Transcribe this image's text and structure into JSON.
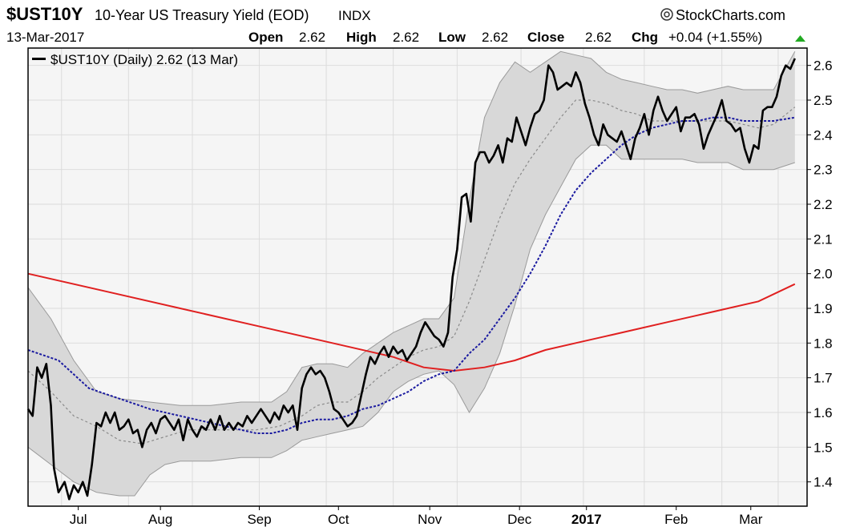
{
  "header": {
    "symbol": "$UST10Y",
    "title": "10-Year US Treasury Yield (EOD)",
    "exchange": "INDX",
    "brand": "StockCharts.com",
    "date": "13-Mar-2017",
    "open_label": "Open",
    "open": "2.62",
    "high_label": "High",
    "high": "2.62",
    "low_label": "Low",
    "low": "2.62",
    "close_label": "Close",
    "close": "2.62",
    "chg_label": "Chg",
    "chg": "+0.04 (+1.55%)"
  },
  "legend": {
    "text": "$UST10Y (Daily) 2.62 (13 Mar)"
  },
  "chart_data": {
    "type": "line",
    "x_tick_labels": [
      "Jul",
      "Aug",
      "Sep",
      "Oct",
      "Nov",
      "Dec",
      "2017",
      "Feb",
      "Mar"
    ],
    "y_tick_labels": [
      "1.4",
      "1.5",
      "1.6",
      "1.7",
      "1.8",
      "1.9",
      "2.0",
      "2.1",
      "2.2",
      "2.3",
      "2.4",
      "2.5",
      "2.6"
    ],
    "ylim": [
      1.33,
      2.65
    ],
    "grid": true,
    "legend_placement": "top-left",
    "colors": {
      "price": "#000000",
      "sma200": "#e02020",
      "sma50": "#1a1aa0",
      "bb_mid": "#8a8a8a",
      "bb_fill": "#d8d8d8",
      "bb_edge": "#9a9a9a",
      "plot_bg": "#f5f5f5",
      "grid": "#dcdcdc"
    },
    "price": [
      [
        0,
        1.61
      ],
      [
        3,
        1.59
      ],
      [
        6,
        1.73
      ],
      [
        9,
        1.7
      ],
      [
        12,
        1.74
      ],
      [
        15,
        1.62
      ],
      [
        17,
        1.44
      ],
      [
        20,
        1.37
      ],
      [
        24,
        1.4
      ],
      [
        27,
        1.35
      ],
      [
        30,
        1.39
      ],
      [
        33,
        1.37
      ],
      [
        36,
        1.4
      ],
      [
        39,
        1.36
      ],
      [
        42,
        1.45
      ],
      [
        45,
        1.57
      ],
      [
        48,
        1.56
      ],
      [
        51,
        1.6
      ],
      [
        54,
        1.57
      ],
      [
        57,
        1.6
      ],
      [
        60,
        1.55
      ],
      [
        63,
        1.56
      ],
      [
        66,
        1.58
      ],
      [
        69,
        1.54
      ],
      [
        72,
        1.55
      ],
      [
        75,
        1.5
      ],
      [
        78,
        1.55
      ],
      [
        81,
        1.57
      ],
      [
        84,
        1.54
      ],
      [
        87,
        1.58
      ],
      [
        90,
        1.59
      ],
      [
        93,
        1.57
      ],
      [
        96,
        1.55
      ],
      [
        99,
        1.58
      ],
      [
        102,
        1.52
      ],
      [
        105,
        1.58
      ],
      [
        108,
        1.55
      ],
      [
        111,
        1.53
      ],
      [
        114,
        1.56
      ],
      [
        117,
        1.55
      ],
      [
        120,
        1.58
      ],
      [
        123,
        1.55
      ],
      [
        126,
        1.59
      ],
      [
        129,
        1.55
      ],
      [
        132,
        1.57
      ],
      [
        135,
        1.55
      ],
      [
        138,
        1.57
      ],
      [
        141,
        1.56
      ],
      [
        144,
        1.59
      ],
      [
        147,
        1.57
      ],
      [
        150,
        1.59
      ],
      [
        153,
        1.61
      ],
      [
        156,
        1.59
      ],
      [
        159,
        1.57
      ],
      [
        162,
        1.6
      ],
      [
        165,
        1.58
      ],
      [
        168,
        1.62
      ],
      [
        171,
        1.6
      ],
      [
        174,
        1.62
      ],
      [
        177,
        1.55
      ],
      [
        180,
        1.67
      ],
      [
        183,
        1.71
      ],
      [
        186,
        1.73
      ],
      [
        189,
        1.71
      ],
      [
        192,
        1.72
      ],
      [
        195,
        1.7
      ],
      [
        198,
        1.66
      ],
      [
        201,
        1.61
      ],
      [
        204,
        1.6
      ],
      [
        207,
        1.58
      ],
      [
        210,
        1.56
      ],
      [
        213,
        1.57
      ],
      [
        216,
        1.59
      ],
      [
        219,
        1.65
      ],
      [
        222,
        1.71
      ],
      [
        225,
        1.76
      ],
      [
        228,
        1.74
      ],
      [
        231,
        1.77
      ],
      [
        234,
        1.79
      ],
      [
        237,
        1.76
      ],
      [
        240,
        1.79
      ],
      [
        243,
        1.77
      ],
      [
        246,
        1.78
      ],
      [
        249,
        1.75
      ],
      [
        252,
        1.77
      ],
      [
        255,
        1.79
      ],
      [
        258,
        1.83
      ],
      [
        261,
        1.86
      ],
      [
        264,
        1.84
      ],
      [
        267,
        1.82
      ],
      [
        270,
        1.81
      ],
      [
        273,
        1.79
      ],
      [
        276,
        1.83
      ],
      [
        279,
        1.99
      ],
      [
        282,
        2.07
      ],
      [
        285,
        2.22
      ],
      [
        288,
        2.23
      ],
      [
        291,
        2.15
      ],
      [
        294,
        2.32
      ],
      [
        297,
        2.35
      ],
      [
        300,
        2.35
      ],
      [
        303,
        2.32
      ],
      [
        306,
        2.34
      ],
      [
        309,
        2.37
      ],
      [
        312,
        2.32
      ],
      [
        315,
        2.39
      ],
      [
        318,
        2.38
      ],
      [
        321,
        2.45
      ],
      [
        324,
        2.41
      ],
      [
        327,
        2.37
      ],
      [
        330,
        2.42
      ],
      [
        333,
        2.46
      ],
      [
        336,
        2.47
      ],
      [
        339,
        2.5
      ],
      [
        342,
        2.6
      ],
      [
        345,
        2.58
      ],
      [
        348,
        2.53
      ],
      [
        351,
        2.54
      ],
      [
        354,
        2.55
      ],
      [
        357,
        2.54
      ],
      [
        360,
        2.58
      ],
      [
        363,
        2.55
      ],
      [
        366,
        2.49
      ],
      [
        369,
        2.45
      ],
      [
        372,
        2.4
      ],
      [
        375,
        2.37
      ],
      [
        378,
        2.43
      ],
      [
        381,
        2.4
      ],
      [
        384,
        2.39
      ],
      [
        387,
        2.38
      ],
      [
        390,
        2.41
      ],
      [
        393,
        2.37
      ],
      [
        396,
        2.33
      ],
      [
        399,
        2.39
      ],
      [
        402,
        2.42
      ],
      [
        405,
        2.46
      ],
      [
        408,
        2.4
      ],
      [
        411,
        2.47
      ],
      [
        414,
        2.51
      ],
      [
        417,
        2.47
      ],
      [
        420,
        2.44
      ],
      [
        423,
        2.46
      ],
      [
        426,
        2.48
      ],
      [
        429,
        2.41
      ],
      [
        432,
        2.45
      ],
      [
        435,
        2.45
      ],
      [
        438,
        2.46
      ],
      [
        441,
        2.43
      ],
      [
        444,
        2.36
      ],
      [
        447,
        2.4
      ],
      [
        450,
        2.43
      ],
      [
        453,
        2.46
      ],
      [
        456,
        2.5
      ],
      [
        459,
        2.44
      ],
      [
        462,
        2.43
      ],
      [
        465,
        2.41
      ],
      [
        468,
        2.42
      ],
      [
        471,
        2.36
      ],
      [
        474,
        2.32
      ],
      [
        477,
        2.37
      ],
      [
        480,
        2.36
      ],
      [
        483,
        2.47
      ],
      [
        486,
        2.48
      ],
      [
        489,
        2.48
      ],
      [
        492,
        2.51
      ],
      [
        495,
        2.57
      ],
      [
        498,
        2.6
      ],
      [
        501,
        2.59
      ],
      [
        504,
        2.62
      ]
    ],
    "sma50": [
      [
        0,
        1.78
      ],
      [
        20,
        1.75
      ],
      [
        40,
        1.67
      ],
      [
        60,
        1.64
      ],
      [
        80,
        1.61
      ],
      [
        100,
        1.59
      ],
      [
        120,
        1.57
      ],
      [
        140,
        1.55
      ],
      [
        150,
        1.54
      ],
      [
        160,
        1.54
      ],
      [
        170,
        1.55
      ],
      [
        180,
        1.57
      ],
      [
        190,
        1.58
      ],
      [
        200,
        1.58
      ],
      [
        210,
        1.59
      ],
      [
        220,
        1.61
      ],
      [
        230,
        1.62
      ],
      [
        240,
        1.64
      ],
      [
        250,
        1.66
      ],
      [
        260,
        1.69
      ],
      [
        270,
        1.71
      ],
      [
        280,
        1.72
      ],
      [
        290,
        1.77
      ],
      [
        300,
        1.81
      ],
      [
        310,
        1.87
      ],
      [
        320,
        1.93
      ],
      [
        330,
        2.0
      ],
      [
        340,
        2.08
      ],
      [
        350,
        2.17
      ],
      [
        360,
        2.24
      ],
      [
        370,
        2.29
      ],
      [
        380,
        2.33
      ],
      [
        390,
        2.37
      ],
      [
        400,
        2.4
      ],
      [
        410,
        2.42
      ],
      [
        420,
        2.43
      ],
      [
        430,
        2.44
      ],
      [
        440,
        2.44
      ],
      [
        450,
        2.45
      ],
      [
        460,
        2.45
      ],
      [
        470,
        2.44
      ],
      [
        480,
        2.44
      ],
      [
        490,
        2.44
      ],
      [
        504,
        2.45
      ]
    ],
    "sma200": [
      [
        0,
        2.0
      ],
      [
        50,
        1.95
      ],
      [
        100,
        1.9
      ],
      [
        150,
        1.85
      ],
      [
        200,
        1.8
      ],
      [
        240,
        1.76
      ],
      [
        260,
        1.73
      ],
      [
        280,
        1.72
      ],
      [
        300,
        1.73
      ],
      [
        320,
        1.75
      ],
      [
        340,
        1.78
      ],
      [
        360,
        1.8
      ],
      [
        380,
        1.82
      ],
      [
        400,
        1.84
      ],
      [
        420,
        1.86
      ],
      [
        440,
        1.88
      ],
      [
        460,
        1.9
      ],
      [
        480,
        1.92
      ],
      [
        504,
        1.97
      ]
    ],
    "bb_upper": [
      [
        0,
        1.96
      ],
      [
        15,
        1.87
      ],
      [
        30,
        1.75
      ],
      [
        45,
        1.66
      ],
      [
        60,
        1.64
      ],
      [
        80,
        1.63
      ],
      [
        100,
        1.62
      ],
      [
        120,
        1.62
      ],
      [
        140,
        1.63
      ],
      [
        160,
        1.63
      ],
      [
        170,
        1.66
      ],
      [
        180,
        1.73
      ],
      [
        190,
        1.74
      ],
      [
        200,
        1.74
      ],
      [
        210,
        1.73
      ],
      [
        220,
        1.77
      ],
      [
        230,
        1.8
      ],
      [
        240,
        1.83
      ],
      [
        250,
        1.85
      ],
      [
        260,
        1.87
      ],
      [
        270,
        1.87
      ],
      [
        280,
        1.93
      ],
      [
        290,
        2.21
      ],
      [
        300,
        2.45
      ],
      [
        310,
        2.55
      ],
      [
        320,
        2.61
      ],
      [
        330,
        2.58
      ],
      [
        340,
        2.61
      ],
      [
        350,
        2.64
      ],
      [
        360,
        2.63
      ],
      [
        370,
        2.62
      ],
      [
        380,
        2.58
      ],
      [
        390,
        2.56
      ],
      [
        400,
        2.55
      ],
      [
        410,
        2.54
      ],
      [
        420,
        2.53
      ],
      [
        430,
        2.53
      ],
      [
        440,
        2.52
      ],
      [
        450,
        2.53
      ],
      [
        460,
        2.54
      ],
      [
        470,
        2.53
      ],
      [
        480,
        2.53
      ],
      [
        490,
        2.53
      ],
      [
        504,
        2.64
      ]
    ],
    "bb_mid": [
      [
        0,
        1.72
      ],
      [
        15,
        1.66
      ],
      [
        30,
        1.59
      ],
      [
        45,
        1.56
      ],
      [
        60,
        1.52
      ],
      [
        75,
        1.51
      ],
      [
        90,
        1.53
      ],
      [
        105,
        1.55
      ],
      [
        120,
        1.55
      ],
      [
        135,
        1.55
      ],
      [
        150,
        1.55
      ],
      [
        165,
        1.56
      ],
      [
        180,
        1.59
      ],
      [
        190,
        1.62
      ],
      [
        200,
        1.63
      ],
      [
        210,
        1.63
      ],
      [
        220,
        1.66
      ],
      [
        230,
        1.7
      ],
      [
        240,
        1.73
      ],
      [
        250,
        1.76
      ],
      [
        260,
        1.78
      ],
      [
        270,
        1.79
      ],
      [
        280,
        1.82
      ],
      [
        290,
        1.92
      ],
      [
        300,
        2.04
      ],
      [
        310,
        2.16
      ],
      [
        320,
        2.26
      ],
      [
        330,
        2.33
      ],
      [
        340,
        2.39
      ],
      [
        350,
        2.45
      ],
      [
        360,
        2.5
      ],
      [
        370,
        2.5
      ],
      [
        380,
        2.49
      ],
      [
        390,
        2.47
      ],
      [
        400,
        2.46
      ],
      [
        410,
        2.44
      ],
      [
        420,
        2.44
      ],
      [
        430,
        2.44
      ],
      [
        440,
        2.44
      ],
      [
        450,
        2.44
      ],
      [
        460,
        2.44
      ],
      [
        470,
        2.43
      ],
      [
        480,
        2.42
      ],
      [
        490,
        2.43
      ],
      [
        504,
        2.48
      ]
    ],
    "bb_lower": [
      [
        0,
        1.5
      ],
      [
        15,
        1.45
      ],
      [
        30,
        1.4
      ],
      [
        45,
        1.37
      ],
      [
        60,
        1.36
      ],
      [
        70,
        1.36
      ],
      [
        80,
        1.42
      ],
      [
        90,
        1.45
      ],
      [
        100,
        1.46
      ],
      [
        120,
        1.46
      ],
      [
        140,
        1.47
      ],
      [
        160,
        1.47
      ],
      [
        170,
        1.49
      ],
      [
        180,
        1.52
      ],
      [
        190,
        1.53
      ],
      [
        200,
        1.54
      ],
      [
        210,
        1.55
      ],
      [
        220,
        1.56
      ],
      [
        230,
        1.6
      ],
      [
        240,
        1.66
      ],
      [
        250,
        1.69
      ],
      [
        260,
        1.71
      ],
      [
        270,
        1.72
      ],
      [
        280,
        1.68
      ],
      [
        290,
        1.6
      ],
      [
        300,
        1.67
      ],
      [
        310,
        1.77
      ],
      [
        320,
        1.91
      ],
      [
        330,
        2.07
      ],
      [
        340,
        2.17
      ],
      [
        350,
        2.25
      ],
      [
        360,
        2.33
      ],
      [
        370,
        2.37
      ],
      [
        380,
        2.37
      ],
      [
        390,
        2.33
      ],
      [
        400,
        2.33
      ],
      [
        410,
        2.33
      ],
      [
        420,
        2.33
      ],
      [
        430,
        2.33
      ],
      [
        440,
        2.32
      ],
      [
        450,
        2.32
      ],
      [
        460,
        2.32
      ],
      [
        470,
        2.3
      ],
      [
        480,
        2.3
      ],
      [
        490,
        2.3
      ],
      [
        504,
        2.32
      ]
    ]
  }
}
